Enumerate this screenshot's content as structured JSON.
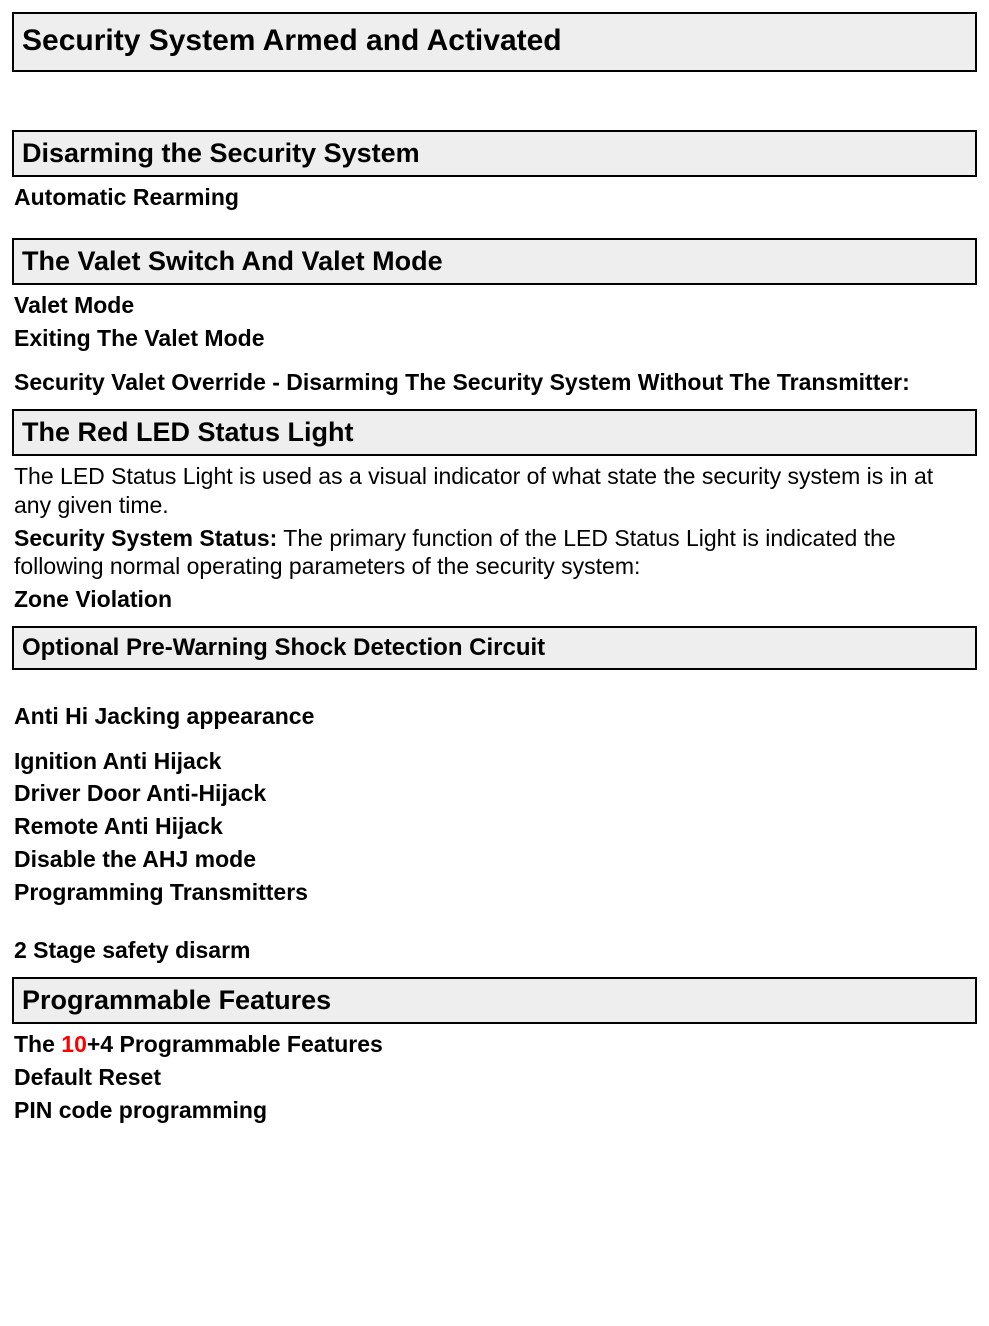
{
  "sections": {
    "armed": {
      "title": "Security System Armed and Activated"
    },
    "disarming": {
      "title": "Disarming the Security System",
      "sub1": "Automatic Rearming"
    },
    "valet": {
      "title": "The Valet Switch And Valet Mode",
      "sub1": "Valet Mode",
      "sub2": "Exiting The Valet Mode",
      "sub3": "Security Valet Override - Disarming The Security System Without The Transmitter:"
    },
    "led": {
      "title": "The Red LED Status Light",
      "body1": "The LED Status Light is used as a visual indicator of what state the security system is in at any given time.",
      "status_label": "Security System Status:",
      "status_body": " The primary function of the LED Status Light is indicated the following normal operating parameters of the security system:",
      "zone": "Zone Violation"
    },
    "prewarn": {
      "title": "Optional Pre-Warning Shock Detection Circuit"
    },
    "antihijack": {
      "heading": "Anti Hi Jacking appearance",
      "l1": "Ignition Anti Hijack",
      "l2": "Driver Door Anti-Hijack",
      "l3": "Remote Anti Hijack",
      "l4": "Disable the AHJ mode",
      "l5": "Programming Transmitters",
      "twostage": "2 Stage safety disarm"
    },
    "programmable": {
      "title": "Programmable Features",
      "line1_pre": "The ",
      "line1_red": "10",
      "line1_post": "+4  Programmable Features",
      "line2": "Default Reset",
      "line3": "PIN code programming"
    }
  },
  "colors": {
    "header_bg": "#eeeeee",
    "border": "#000000",
    "text": "#000000",
    "red": "#ff0000"
  }
}
